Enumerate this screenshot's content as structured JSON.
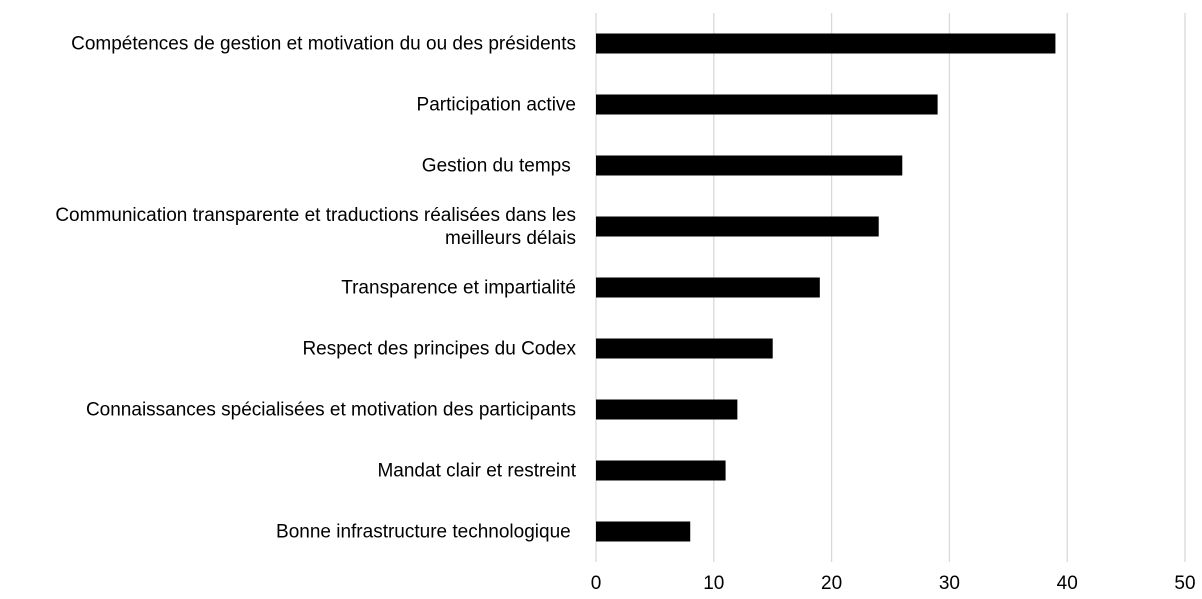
{
  "chart_data": {
    "type": "bar",
    "orientation": "horizontal",
    "categories": [
      "Compétences de gestion et motivation du ou des présidents",
      "Participation active",
      "Gestion du temps ",
      "Communication transparente et traductions réalisées dans les meilleurs délais",
      "Transparence et impartialité",
      "Respect des principes du Codex",
      "Connaissances spécialisées et motivation des participants",
      "Mandat clair et restreint",
      "Bonne infrastructure technologique "
    ],
    "values": [
      39,
      29,
      26,
      24,
      19,
      15,
      12,
      11,
      8
    ],
    "color": "#000000",
    "xlim": [
      0,
      50
    ],
    "xticks": [
      0,
      10,
      20,
      30,
      40,
      50
    ],
    "grid": true
  }
}
